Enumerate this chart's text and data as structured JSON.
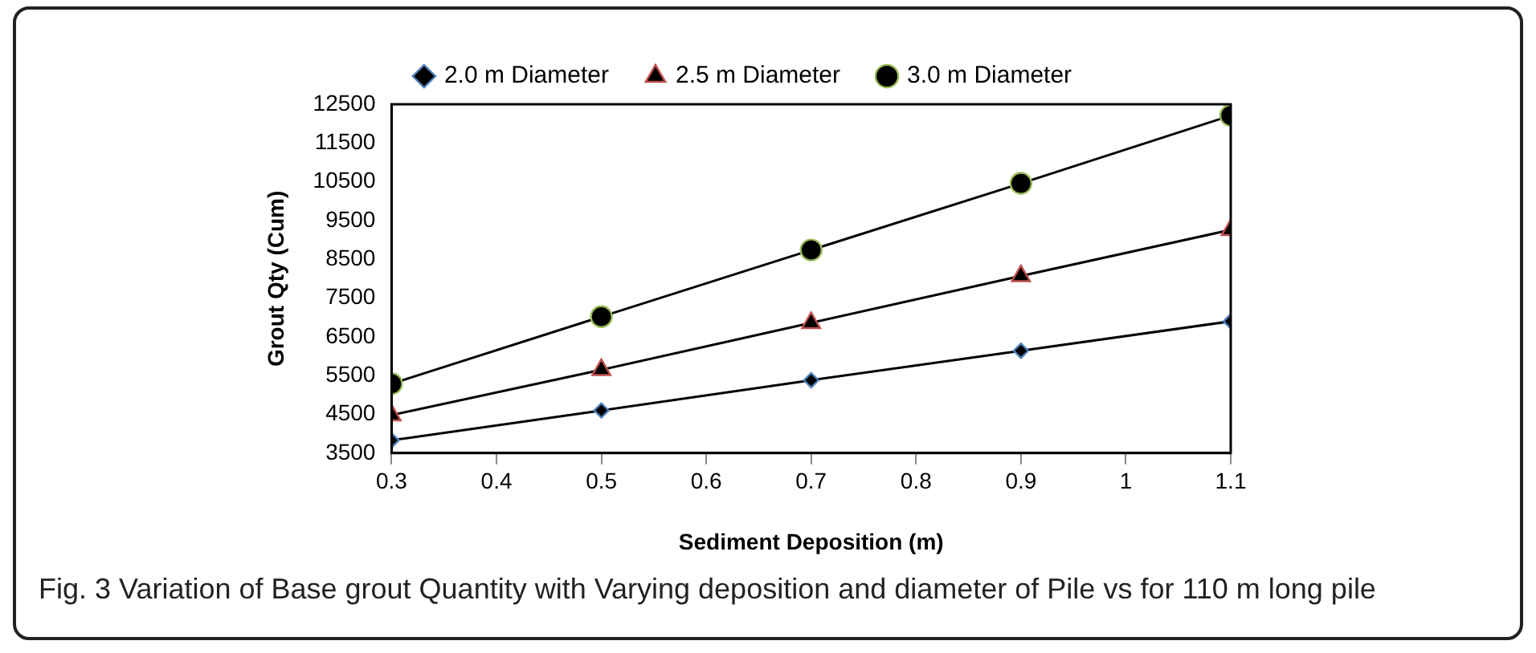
{
  "chart_data": {
    "type": "line",
    "xlabel": "Sediment Deposition (m)",
    "ylabel": "Grout Qty (Cum)",
    "x": [
      0.3,
      0.5,
      0.7,
      0.9,
      1.1
    ],
    "series": [
      {
        "name": "2.0 m Diameter",
        "color": "#000000",
        "marker": "diamond",
        "values": [
          3830,
          4600,
          5380,
          6140,
          6900
        ]
      },
      {
        "name": "2.5 m Diameter",
        "color": "#000000",
        "marker": "triangle",
        "values": [
          4480,
          5650,
          6860,
          8070,
          9260
        ]
      },
      {
        "name": "3.0 m Diameter",
        "color": "#000000",
        "marker": "circle",
        "values": [
          5290,
          7020,
          8740,
          10460,
          12210
        ]
      }
    ],
    "xlim": [
      0.3,
      1.1
    ],
    "xticks": [
      0.3,
      0.4,
      0.5,
      0.6,
      0.7,
      0.8,
      0.9,
      1,
      1.1
    ],
    "ylim": [
      3500,
      12500
    ],
    "yticks": [
      3500,
      4500,
      5500,
      6500,
      7500,
      8500,
      9500,
      10500,
      11500,
      12500
    ],
    "grid": false,
    "legend": "top",
    "annotations": [
      "Fig. 3 Variation of Base grout Quantity with Varying deposition and diameter of Pile vs for 110 m long pile"
    ]
  }
}
